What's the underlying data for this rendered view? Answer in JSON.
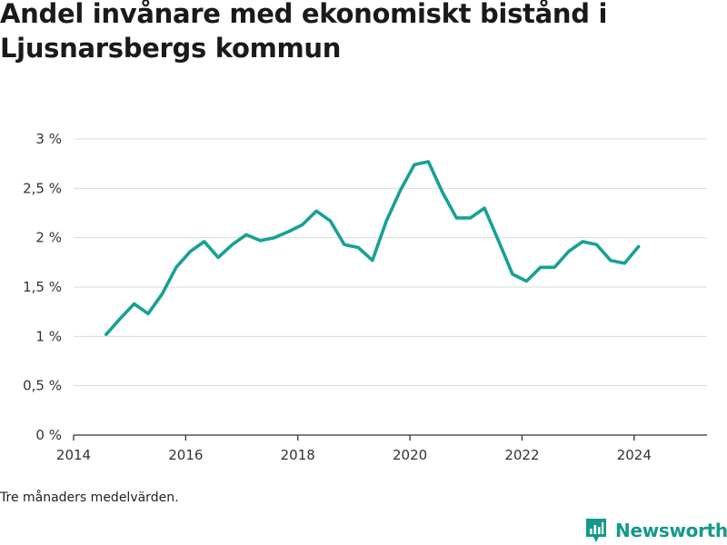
{
  "title": "Andel invånare med ekonomiskt bistånd i Ljusnarsbergs kommun",
  "note": "Tre månaders medelvärden.",
  "brand": {
    "name": "Newsworthy",
    "icon": "newsworthy-logo-icon",
    "color": "#14998a"
  },
  "colors": {
    "line": "#17a096",
    "grid": "#d9d9d9",
    "axis": "#333333"
  },
  "chart_data": {
    "type": "line",
    "title": "Andel invånare med ekonomiskt bistånd i Ljusnarsbergs kommun",
    "xlabel": "",
    "ylabel": "",
    "xlim": [
      2014,
      2025.3
    ],
    "ylim": [
      0,
      3
    ],
    "grid": true,
    "legend": "none",
    "x_ticks": [
      2014,
      2016,
      2018,
      2020,
      2022,
      2024
    ],
    "x_tick_labels": [
      "2014",
      "2016",
      "2018",
      "2020",
      "2022",
      "2024"
    ],
    "y_ticks": [
      0,
      0.5,
      1,
      1.5,
      2,
      2.5,
      3
    ],
    "y_tick_labels": [
      "0 %",
      "0,5 %",
      "1 %",
      "1,5 %",
      "2 %",
      "2,5 %",
      "3 %"
    ],
    "series": [
      {
        "name": "",
        "x": [
          2014.58,
          2014.83,
          2015.08,
          2015.33,
          2015.58,
          2015.83,
          2016.08,
          2016.33,
          2016.58,
          2016.83,
          2017.08,
          2017.33,
          2017.58,
          2017.83,
          2018.08,
          2018.33,
          2018.58,
          2018.83,
          2019.08,
          2019.33,
          2019.58,
          2019.83,
          2020.08,
          2020.33,
          2020.58,
          2020.83,
          2021.08,
          2021.33,
          2021.58,
          2021.83,
          2022.08,
          2022.33,
          2022.58,
          2022.83,
          2023.08,
          2023.33,
          2023.58,
          2023.83,
          2024.08
        ],
        "values": [
          1.02,
          1.18,
          1.33,
          1.23,
          1.43,
          1.7,
          1.86,
          1.96,
          1.8,
          1.93,
          2.03,
          1.97,
          2.0,
          2.06,
          2.13,
          2.27,
          2.17,
          1.93,
          1.9,
          1.77,
          2.17,
          2.48,
          2.74,
          2.77,
          2.46,
          2.2,
          2.2,
          2.3,
          1.97,
          1.63,
          1.56,
          1.7,
          1.7,
          1.86,
          1.96,
          1.93,
          1.77,
          1.74,
          1.91
        ]
      }
    ]
  }
}
